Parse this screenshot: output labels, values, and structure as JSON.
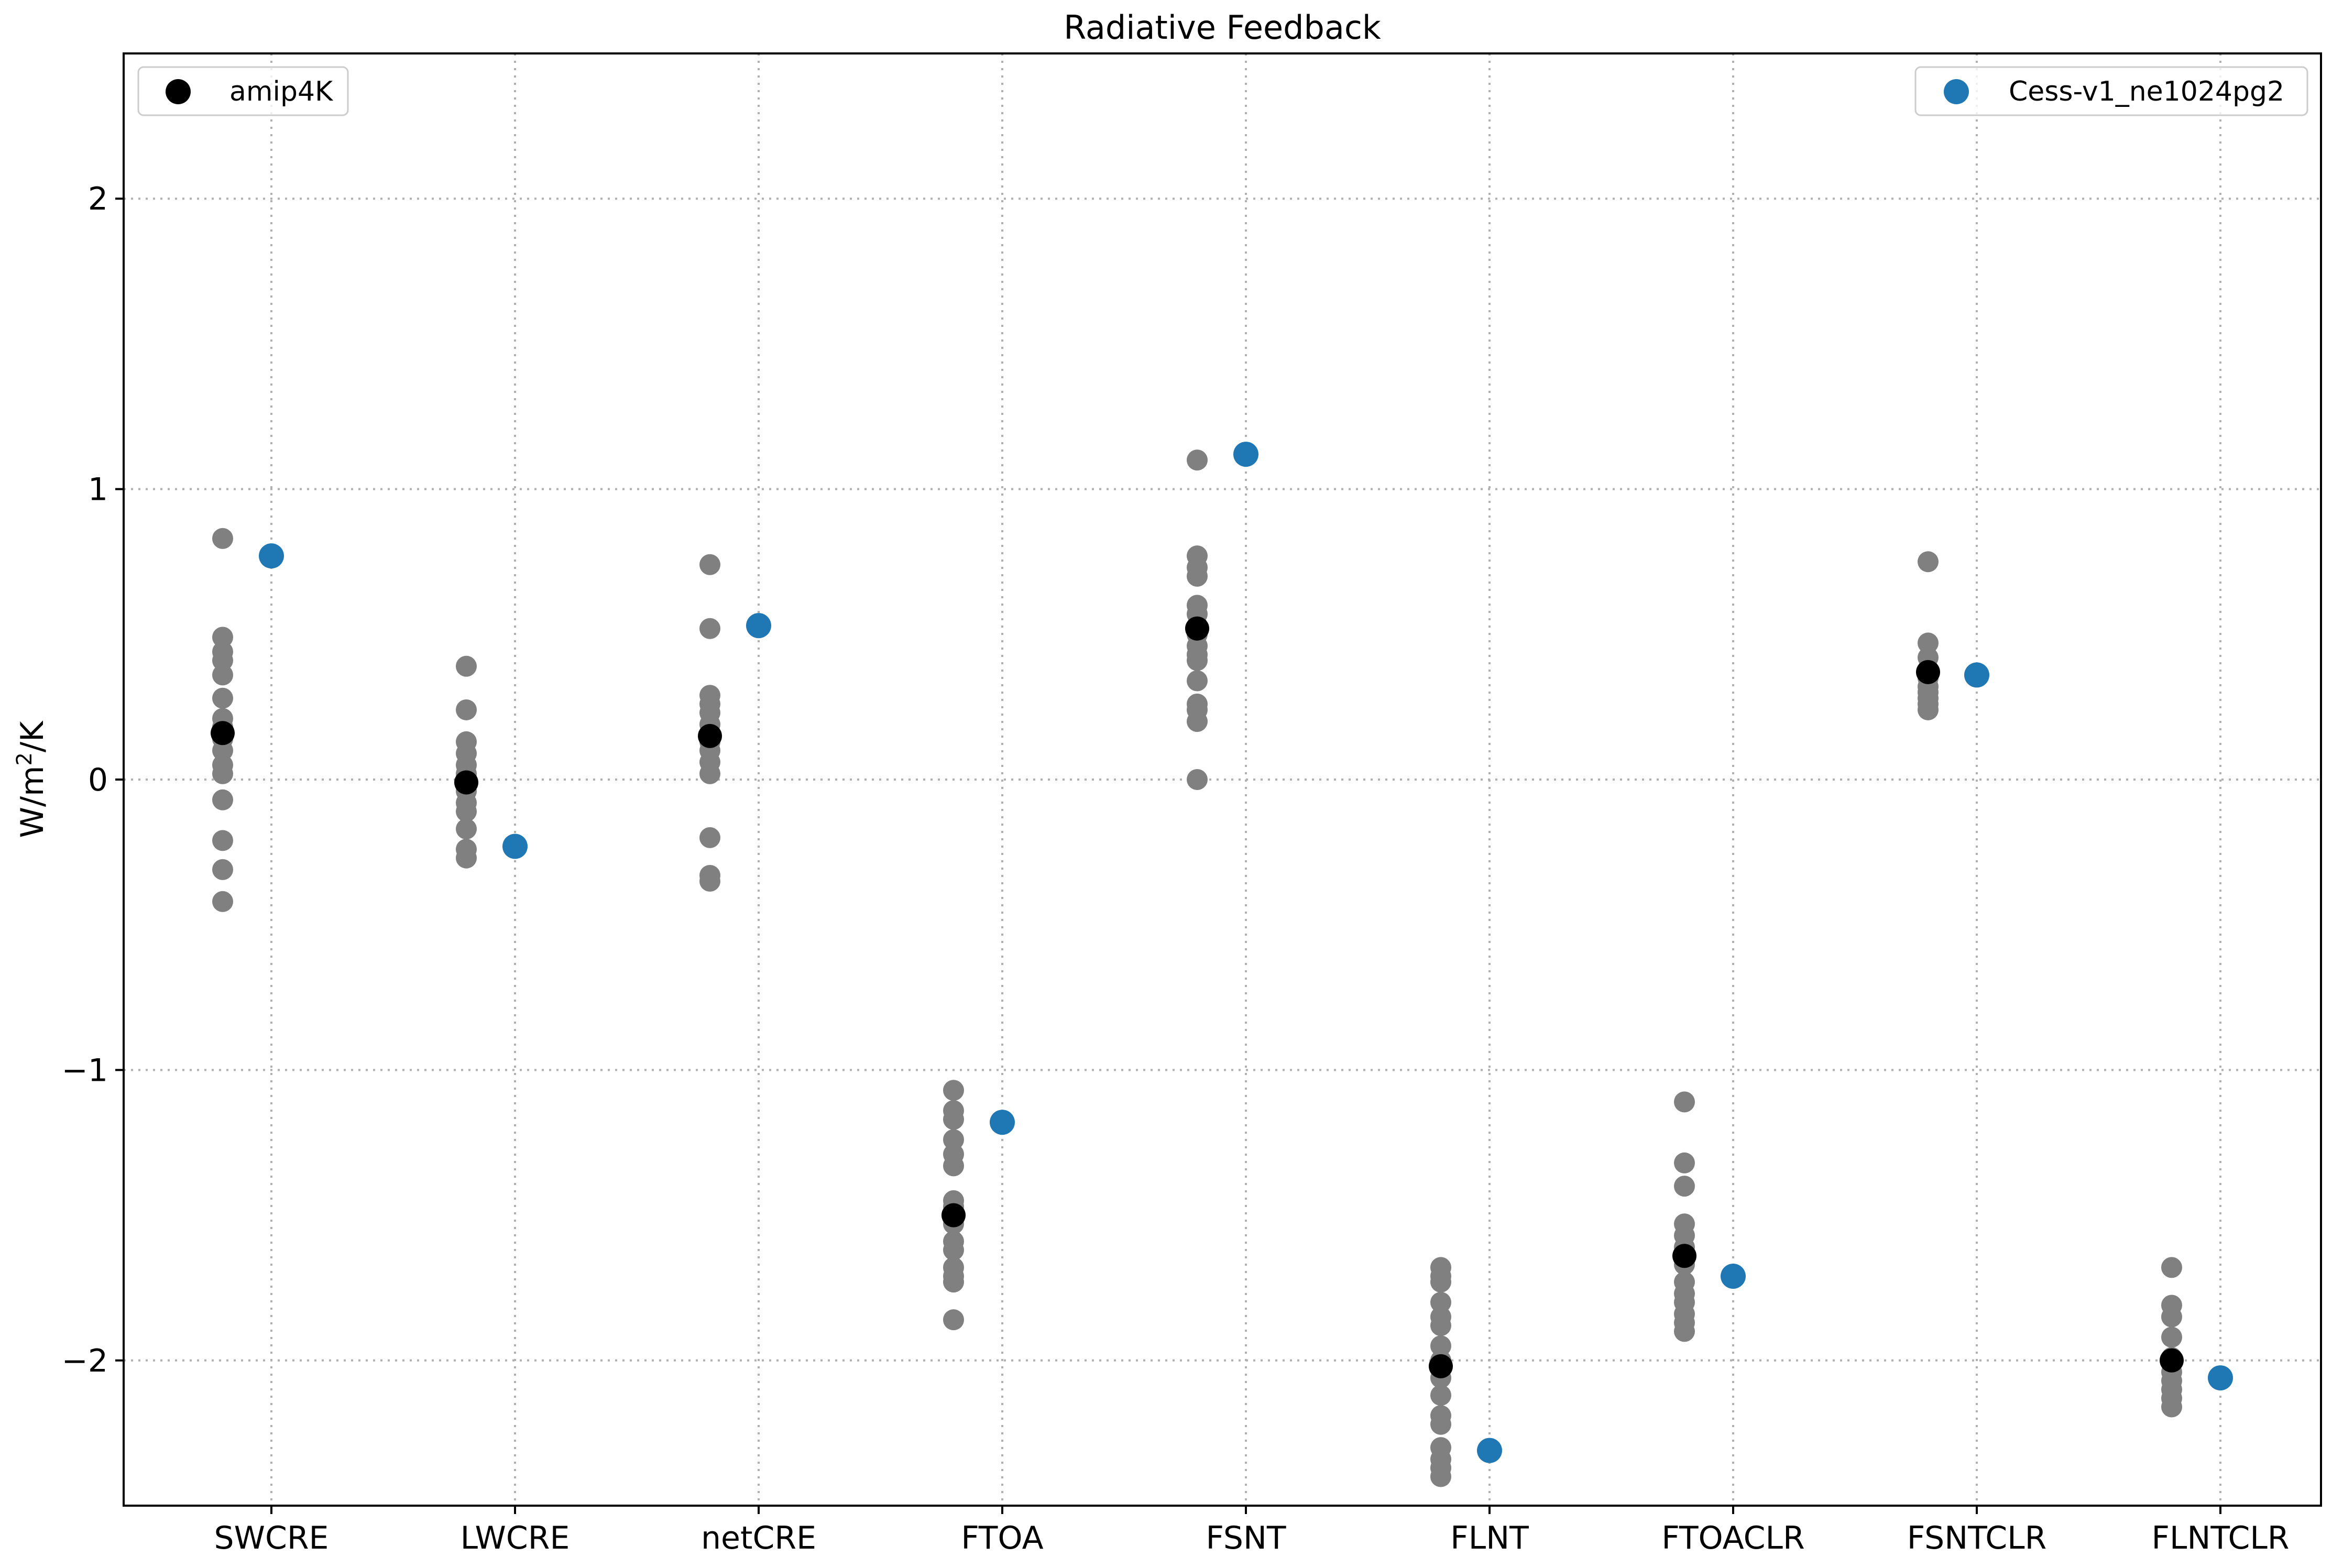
{
  "chart_data": {
    "type": "scatter",
    "title": "Radiative Feedback",
    "xlabel": "",
    "ylabel": "W/m",
    "ylabel_sup": "2",
    "ylabel_suffix": "/K",
    "ylim": [
      -2.5,
      2.5
    ],
    "yticks": [
      -2,
      -1,
      0,
      1,
      2
    ],
    "ytick_labels": [
      "−2",
      "−1",
      "0",
      "1",
      "2"
    ],
    "grid": true,
    "categories": [
      "SWCRE",
      "LWCRE",
      "netCRE",
      "FTOA",
      "FSNT",
      "FLNT",
      "FTOACLR",
      "FSNTCLR",
      "FLNTCLR"
    ],
    "ensemble_color": "#808080",
    "ensemble_values": [
      [
        0.83,
        0.49,
        0.44,
        0.41,
        0.36,
        0.28,
        0.21,
        0.18,
        0.14,
        0.1,
        0.05,
        0.02,
        -0.07,
        -0.21,
        -0.31,
        -0.42
      ],
      [
        0.39,
        0.24,
        0.13,
        0.09,
        0.05,
        0.02,
        0.0,
        -0.04,
        -0.08,
        -0.11,
        -0.17,
        -0.24,
        -0.27
      ],
      [
        0.74,
        0.52,
        0.29,
        0.26,
        0.23,
        0.19,
        0.13,
        0.1,
        0.06,
        0.02,
        -0.2,
        -0.33,
        -0.35
      ],
      [
        -1.07,
        -1.14,
        -1.17,
        -1.24,
        -1.29,
        -1.33,
        -1.45,
        -1.47,
        -1.53,
        -1.59,
        -1.62,
        -1.68,
        -1.71,
        -1.73,
        -1.86
      ],
      [
        1.1,
        0.77,
        0.73,
        0.7,
        0.6,
        0.57,
        0.53,
        0.5,
        0.46,
        0.43,
        0.41,
        0.34,
        0.26,
        0.24,
        0.2,
        0.0
      ],
      [
        -1.68,
        -1.71,
        -1.73,
        -1.8,
        -1.85,
        -1.88,
        -1.95,
        -2.0,
        -2.06,
        -2.12,
        -2.19,
        -2.22,
        -2.3,
        -2.34,
        -2.37,
        -2.4
      ],
      [
        -1.11,
        -1.32,
        -1.4,
        -1.53,
        -1.57,
        -1.61,
        -1.67,
        -1.73,
        -1.77,
        -1.8,
        -1.84,
        -1.87,
        -1.9
      ],
      [
        0.75,
        0.47,
        0.42,
        0.38,
        0.35,
        0.32,
        0.3,
        0.28,
        0.26,
        0.24
      ],
      [
        -1.68,
        -1.81,
        -1.85,
        -1.92,
        -1.99,
        -2.04,
        -2.07,
        -2.1,
        -2.13,
        -2.16
      ]
    ],
    "series": [
      {
        "name": "amip4K",
        "color": "#000000",
        "values": [
          0.16,
          -0.01,
          0.15,
          -1.5,
          0.52,
          -2.02,
          -1.64,
          0.37,
          -2.0
        ]
      },
      {
        "name": "Cess-v1_ne1024pg2",
        "color": "#1f77b4",
        "values": [
          0.77,
          -0.23,
          0.53,
          -1.18,
          1.12,
          -2.31,
          -1.71,
          0.36,
          -2.06
        ]
      }
    ],
    "legends": [
      {
        "series": 0,
        "placement": "upper left"
      },
      {
        "series": 1,
        "placement": "upper right"
      }
    ]
  }
}
